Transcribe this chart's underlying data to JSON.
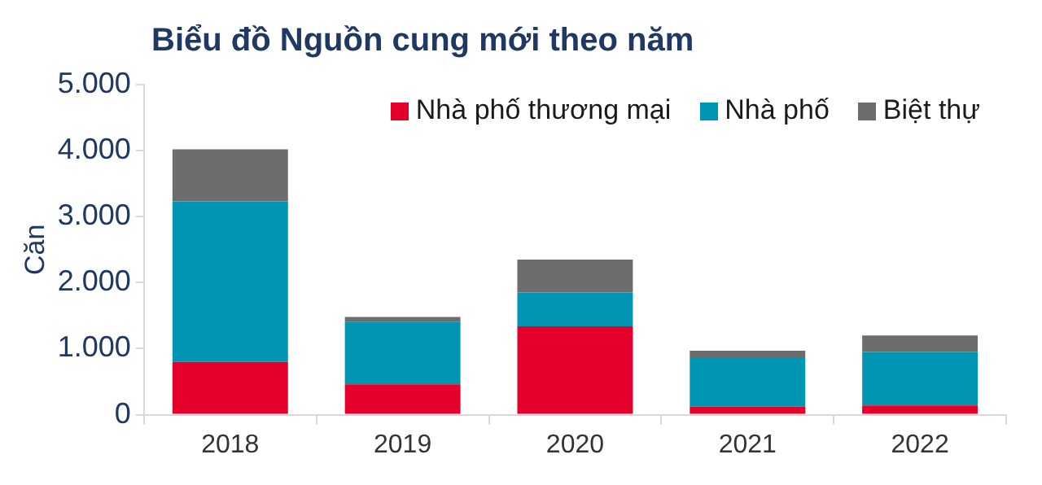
{
  "chart_data": {
    "type": "bar",
    "title": "Biểu đồ Nguồn cung mới theo năm",
    "ylabel": "Căn",
    "categories": [
      "2018",
      "2019",
      "2020",
      "2021",
      "2022"
    ],
    "series": [
      {
        "name": "Nhà phố thương mại",
        "color": "#e4002b",
        "values": [
          800,
          460,
          1340,
          120,
          140
        ]
      },
      {
        "name": "Nhà phố",
        "color": "#0095b3",
        "values": [
          2430,
          950,
          510,
          750,
          810
        ]
      },
      {
        "name": "Biệt thự",
        "color": "#6d6d6d",
        "values": [
          790,
          70,
          500,
          100,
          250
        ]
      }
    ],
    "stacked": true,
    "ylim": [
      0,
      5000
    ],
    "yticks": [
      0,
      {
        "value": 1000,
        "label": "1.000"
      },
      {
        "value": 2000,
        "label": "2.000"
      },
      {
        "value": 3000,
        "label": "3.000"
      },
      {
        "value": 4000,
        "label": "4.000"
      },
      {
        "value": 5000,
        "label": "5.000"
      }
    ],
    "grid": false,
    "legend": "top right"
  }
}
